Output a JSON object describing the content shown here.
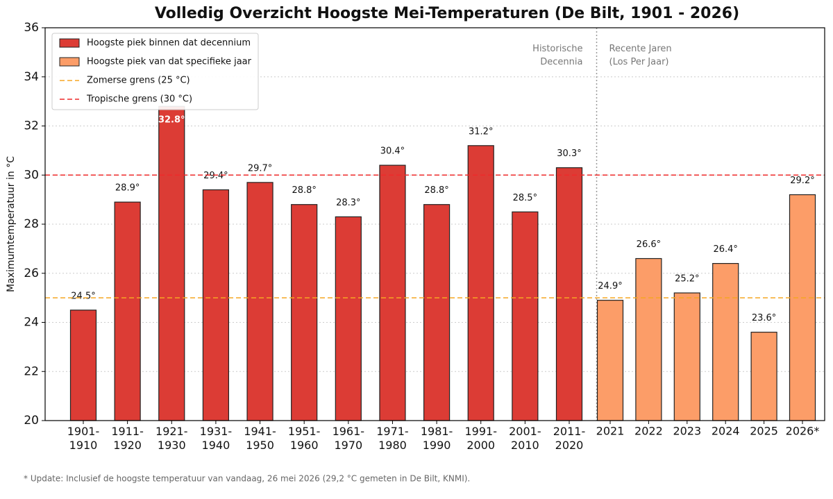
{
  "chart_data": {
    "type": "bar",
    "title": "Volledig Overzicht Hoogste Mei-Temperaturen (De Bilt, 1901 - 2026)",
    "ylabel": "Maximumtemperatuur in °C",
    "categories": [
      "1901-\n1910",
      "1911-\n1920",
      "1921-\n1930",
      "1931-\n1940",
      "1941-\n1950",
      "1951-\n1960",
      "1961-\n1970",
      "1971-\n1980",
      "1981-\n1990",
      "1991-\n2000",
      "2001-\n2010",
      "2011-\n2020",
      "2021",
      "2022",
      "2023",
      "2024",
      "2025",
      "2026*"
    ],
    "series": [
      {
        "name": "Hoogste piek binnen dat decennium",
        "color": "#dc3c35",
        "values": [
          24.5,
          28.9,
          32.8,
          29.4,
          29.7,
          28.8,
          28.3,
          30.4,
          28.8,
          31.2,
          28.5,
          30.3,
          null,
          null,
          null,
          null,
          null,
          null
        ],
        "value_labels": [
          "24.5°",
          "28.9°",
          "32.8°",
          "29.4°",
          "29.7°",
          "28.8°",
          "28.3°",
          "30.4°",
          "28.8°",
          "31.2°",
          "28.5°",
          "30.3°",
          null,
          null,
          null,
          null,
          null,
          null
        ]
      },
      {
        "name": "Hoogste piek van dat specifieke jaar",
        "color": "#fc9d68",
        "values": [
          null,
          null,
          null,
          null,
          null,
          null,
          null,
          null,
          null,
          null,
          null,
          null,
          24.9,
          26.6,
          25.2,
          26.4,
          23.6,
          29.2
        ],
        "value_labels": [
          null,
          null,
          null,
          null,
          null,
          null,
          null,
          null,
          null,
          null,
          null,
          null,
          "24.9°",
          "26.6°",
          "25.2°",
          "26.4°",
          "23.6°",
          "29.2°"
        ]
      }
    ],
    "hlines": [
      {
        "value": 25,
        "label": "Zomerse grens (25 °C)",
        "color": "#f5a623"
      },
      {
        "value": 30,
        "label": "Tropische grens (30 °C)",
        "color": "#ee2a2a"
      }
    ],
    "sections": [
      "Historische\nDecennia",
      "Recente Jaren\n(Los Per Jaar)"
    ],
    "ylim": [
      20,
      36
    ],
    "yticks": [
      20,
      22,
      24,
      26,
      28,
      30,
      32,
      34,
      36
    ],
    "grid": true,
    "legend": "upper left",
    "footnote": "* Update: Inclusief de hoogste temperatuur van vandaag, 26 mei 2026 (29,2 °C gemeten in De Bilt, KNMI)."
  }
}
